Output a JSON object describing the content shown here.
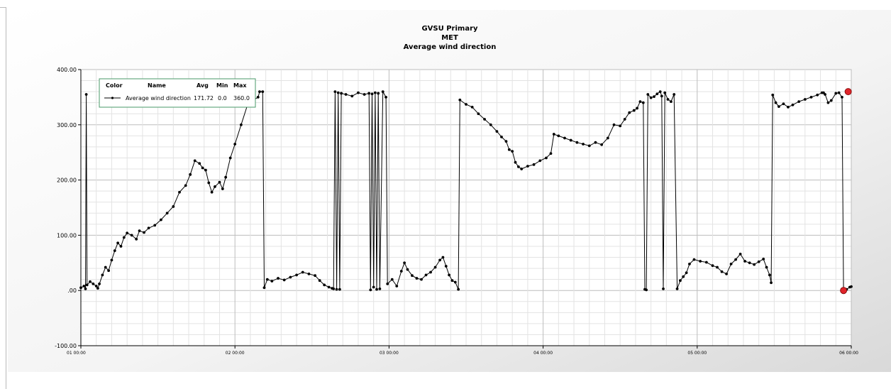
{
  "chart_data": {
    "type": "line",
    "title": [
      "GVSU Primary",
      "MET",
      "Average wind direction"
    ],
    "xlabel": "",
    "ylabel": "",
    "ylim": [
      -100,
      400
    ],
    "xlim": [
      0,
      5
    ],
    "x_unit": "days since tick 01 00:00",
    "y_ticks": [
      400,
      300,
      200,
      100,
      0,
      -100
    ],
    "y_tick_labels": [
      "400.00",
      "300.00",
      "200.00",
      "100.00",
      ".00",
      "-100.00"
    ],
    "x_ticks": [
      0,
      1,
      2,
      3,
      4,
      5
    ],
    "x_tick_labels": [
      "01 00:00",
      "02 00:00",
      "03 00:00",
      "04 00:00",
      "05 00:00",
      "06 00:00"
    ],
    "grid": true,
    "legend": {
      "placement": "top-left",
      "headers": [
        "Color",
        "Name",
        "Avg",
        "Min",
        "Max"
      ],
      "rows": [
        {
          "name": "Average wind direction",
          "avg": "171.72",
          "min": "0.0",
          "max": "360.0",
          "color": "#000000"
        }
      ]
    },
    "highlight_points": [
      {
        "x": 4.98,
        "y": 360,
        "color": "#e0242a"
      },
      {
        "x": 4.95,
        "y": 0,
        "color": "#e0242a"
      }
    ],
    "series": [
      {
        "name": "Average wind direction",
        "color": "#000000",
        "points": [
          [
            0.0,
            5
          ],
          [
            0.02,
            8
          ],
          [
            0.03,
            3
          ],
          [
            0.035,
            355
          ],
          [
            0.04,
            10
          ],
          [
            0.06,
            16
          ],
          [
            0.08,
            12
          ],
          [
            0.1,
            8
          ],
          [
            0.11,
            4
          ],
          [
            0.12,
            12
          ],
          [
            0.14,
            28
          ],
          [
            0.16,
            42
          ],
          [
            0.18,
            36
          ],
          [
            0.2,
            55
          ],
          [
            0.22,
            72
          ],
          [
            0.24,
            86
          ],
          [
            0.26,
            80
          ],
          [
            0.28,
            96
          ],
          [
            0.3,
            104
          ],
          [
            0.33,
            100
          ],
          [
            0.36,
            93
          ],
          [
            0.38,
            108
          ],
          [
            0.41,
            105
          ],
          [
            0.44,
            113
          ],
          [
            0.48,
            118
          ],
          [
            0.52,
            128
          ],
          [
            0.56,
            140
          ],
          [
            0.6,
            152
          ],
          [
            0.64,
            178
          ],
          [
            0.68,
            190
          ],
          [
            0.71,
            210
          ],
          [
            0.74,
            235
          ],
          [
            0.77,
            230
          ],
          [
            0.79,
            222
          ],
          [
            0.81,
            218
          ],
          [
            0.83,
            195
          ],
          [
            0.85,
            178
          ],
          [
            0.87,
            188
          ],
          [
            0.9,
            196
          ],
          [
            0.92,
            184
          ],
          [
            0.94,
            205
          ],
          [
            0.97,
            240
          ],
          [
            1.0,
            265
          ],
          [
            1.04,
            300
          ],
          [
            1.08,
            335
          ],
          [
            1.12,
            345
          ],
          [
            1.15,
            350
          ],
          [
            1.16,
            360
          ],
          [
            1.18,
            360
          ],
          [
            1.19,
            5
          ],
          [
            1.21,
            20
          ],
          [
            1.24,
            17
          ],
          [
            1.28,
            22
          ],
          [
            1.32,
            19
          ],
          [
            1.36,
            24
          ],
          [
            1.4,
            28
          ],
          [
            1.44,
            33
          ],
          [
            1.48,
            30
          ],
          [
            1.52,
            27
          ],
          [
            1.55,
            18
          ],
          [
            1.58,
            10
          ],
          [
            1.61,
            6
          ],
          [
            1.63,
            4
          ],
          [
            1.64,
            3
          ],
          [
            1.65,
            360
          ],
          [
            1.66,
            2
          ],
          [
            1.67,
            358
          ],
          [
            1.68,
            2
          ],
          [
            1.69,
            357
          ],
          [
            1.72,
            355
          ],
          [
            1.76,
            352
          ],
          [
            1.8,
            358
          ],
          [
            1.84,
            355
          ],
          [
            1.87,
            357
          ],
          [
            1.88,
            1
          ],
          [
            1.89,
            356
          ],
          [
            1.9,
            6
          ],
          [
            1.91,
            358
          ],
          [
            1.92,
            2
          ],
          [
            1.93,
            357
          ],
          [
            1.94,
            3
          ],
          [
            1.96,
            360
          ],
          [
            1.98,
            350
          ],
          [
            1.99,
            12
          ],
          [
            2.02,
            20
          ],
          [
            2.05,
            8
          ],
          [
            2.08,
            35
          ],
          [
            2.1,
            50
          ],
          [
            2.12,
            38
          ],
          [
            2.15,
            27
          ],
          [
            2.18,
            22
          ],
          [
            2.21,
            20
          ],
          [
            2.24,
            28
          ],
          [
            2.27,
            33
          ],
          [
            2.3,
            42
          ],
          [
            2.33,
            55
          ],
          [
            2.35,
            60
          ],
          [
            2.37,
            44
          ],
          [
            2.39,
            28
          ],
          [
            2.41,
            18
          ],
          [
            2.43,
            15
          ],
          [
            2.45,
            2
          ],
          [
            2.46,
            345
          ],
          [
            2.5,
            337
          ],
          [
            2.54,
            332
          ],
          [
            2.58,
            320
          ],
          [
            2.62,
            310
          ],
          [
            2.66,
            300
          ],
          [
            2.7,
            288
          ],
          [
            2.73,
            278
          ],
          [
            2.76,
            270
          ],
          [
            2.78,
            255
          ],
          [
            2.8,
            252
          ],
          [
            2.82,
            232
          ],
          [
            2.84,
            224
          ],
          [
            2.86,
            220
          ],
          [
            2.9,
            225
          ],
          [
            2.94,
            228
          ],
          [
            2.98,
            235
          ],
          [
            3.02,
            240
          ],
          [
            3.05,
            248
          ],
          [
            3.07,
            283
          ],
          [
            3.1,
            280
          ],
          [
            3.14,
            276
          ],
          [
            3.18,
            272
          ],
          [
            3.22,
            268
          ],
          [
            3.26,
            265
          ],
          [
            3.3,
            262
          ],
          [
            3.34,
            268
          ],
          [
            3.38,
            264
          ],
          [
            3.42,
            276
          ],
          [
            3.46,
            300
          ],
          [
            3.5,
            298
          ],
          [
            3.53,
            310
          ],
          [
            3.56,
            322
          ],
          [
            3.59,
            326
          ],
          [
            3.61,
            330
          ],
          [
            3.63,
            342
          ],
          [
            3.65,
            340
          ],
          [
            3.66,
            2
          ],
          [
            3.67,
            1
          ],
          [
            3.68,
            355
          ],
          [
            3.7,
            349
          ],
          [
            3.72,
            351
          ],
          [
            3.74,
            356
          ],
          [
            3.76,
            360
          ],
          [
            3.77,
            352
          ],
          [
            3.78,
            3
          ],
          [
            3.79,
            358
          ],
          [
            3.81,
            346
          ],
          [
            3.83,
            342
          ],
          [
            3.85,
            355
          ],
          [
            3.87,
            3
          ],
          [
            3.89,
            18
          ],
          [
            3.91,
            25
          ],
          [
            3.93,
            32
          ],
          [
            3.95,
            48
          ],
          [
            3.98,
            56
          ],
          [
            4.02,
            53
          ],
          [
            4.06,
            51
          ],
          [
            4.1,
            45
          ],
          [
            4.13,
            42
          ],
          [
            4.16,
            34
          ],
          [
            4.19,
            30
          ],
          [
            4.22,
            48
          ],
          [
            4.25,
            56
          ],
          [
            4.28,
            66
          ],
          [
            4.31,
            53
          ],
          [
            4.34,
            50
          ],
          [
            4.37,
            47
          ],
          [
            4.4,
            52
          ],
          [
            4.43,
            57
          ],
          [
            4.45,
            42
          ],
          [
            4.47,
            28
          ],
          [
            4.48,
            14
          ],
          [
            4.49,
            354
          ],
          [
            4.51,
            340
          ],
          [
            4.53,
            333
          ],
          [
            4.56,
            338
          ],
          [
            4.59,
            332
          ],
          [
            4.62,
            336
          ],
          [
            4.66,
            342
          ],
          [
            4.7,
            346
          ],
          [
            4.74,
            350
          ],
          [
            4.78,
            354
          ],
          [
            4.81,
            358
          ],
          [
            4.82,
            358
          ],
          [
            4.83,
            355
          ],
          [
            4.85,
            340
          ],
          [
            4.87,
            344
          ],
          [
            4.9,
            357
          ],
          [
            4.92,
            358
          ],
          [
            4.94,
            350
          ],
          [
            4.95,
            0
          ],
          [
            4.97,
            2
          ],
          [
            4.99,
            6
          ],
          [
            5.0,
            7
          ]
        ]
      }
    ]
  }
}
